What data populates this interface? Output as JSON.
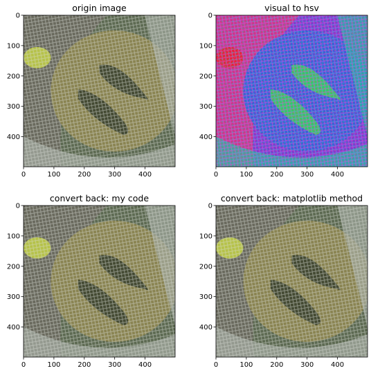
{
  "chart_data": [
    {
      "type": "image",
      "title": "origin image",
      "xticks": [
        "0",
        "100",
        "200",
        "300",
        "400"
      ],
      "yticks": [
        "0",
        "100",
        "200",
        "300",
        "400"
      ],
      "xlim": [
        0,
        499
      ],
      "ylim": [
        499,
        0
      ],
      "palette": "natural",
      "colors": [
        "#8a8452",
        "#5d6a52",
        "#a3a9a0",
        "#6e6a62",
        "#b6c24a",
        "#3c4430"
      ]
    },
    {
      "type": "image",
      "title": "visual to hsv",
      "xticks": [
        "0",
        "100",
        "200",
        "300",
        "400"
      ],
      "yticks": [
        "0",
        "100",
        "200",
        "300",
        "400"
      ],
      "xlim": [
        0,
        499
      ],
      "ylim": [
        499,
        0
      ],
      "palette": "hsv",
      "colors": [
        "#3f5fd6",
        "#7b3fcf",
        "#2bb8a0",
        "#d83a7a",
        "#e0263a",
        "#38d15a"
      ]
    },
    {
      "type": "image",
      "title": "convert back: my code",
      "xticks": [
        "0",
        "100",
        "200",
        "300",
        "400"
      ],
      "yticks": [
        "0",
        "100",
        "200",
        "300",
        "400"
      ],
      "xlim": [
        0,
        499
      ],
      "ylim": [
        499,
        0
      ],
      "palette": "natural",
      "colors": [
        "#8a8452",
        "#5d6a52",
        "#a3a9a0",
        "#6e6a62",
        "#b6c24a",
        "#3c4430"
      ]
    },
    {
      "type": "image",
      "title": "convert back: matplotlib method",
      "xticks": [
        "0",
        "100",
        "200",
        "300",
        "400"
      ],
      "yticks": [
        "0",
        "100",
        "200",
        "300",
        "400"
      ],
      "xlim": [
        0,
        499
      ],
      "ylim": [
        499,
        0
      ],
      "palette": "natural",
      "colors": [
        "#8a8452",
        "#5d6a52",
        "#a3a9a0",
        "#6e6a62",
        "#b6c24a",
        "#3c4430"
      ]
    }
  ]
}
